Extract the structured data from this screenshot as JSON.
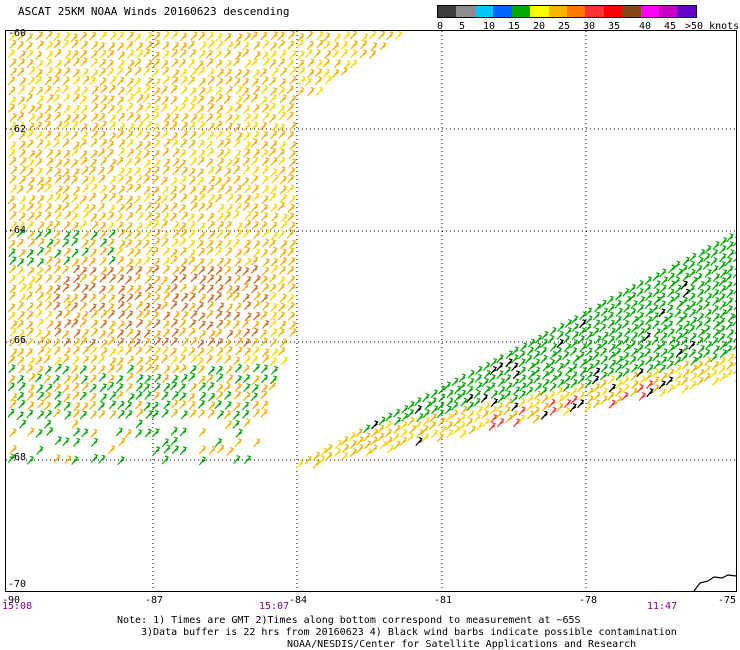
{
  "title": "ASCAT 25KM NOAA Winds 20160623 descending",
  "colorbar": {
    "colors": [
      "#3c3c3c",
      "#8c8c8c",
      "#00c8ff",
      "#0064ff",
      "#00aa00",
      "#ffff00",
      "#ffb400",
      "#ff7800",
      "#ff3232",
      "#ff0000",
      "#8b4513",
      "#ff00ff",
      "#c800c8",
      "#6400c8"
    ],
    "labels": [
      "0",
      "5",
      "10",
      "15",
      "20",
      "25",
      "30",
      "35",
      "40",
      "45",
      ">50 knots"
    ]
  },
  "map": {
    "lat_labels": [
      "-60",
      "-62",
      "-64",
      "-66",
      "-68",
      "-70"
    ],
    "lon_labels": [
      "-90",
      "-87",
      "-84",
      "-81",
      "-78",
      "-75"
    ],
    "time_labels": [
      "15:08",
      "15:07",
      "11:47"
    ],
    "coast_color": "#000000"
  },
  "footer": {
    "line1": "Note: 1) Times are GMT 2)Times along bottom correspond to measurement at ~65S",
    "line2": "3)Data buffer is 22 hrs from 20160623 4) Black wind barbs indicate possible contamination",
    "line3": "NOAA/NESDIS/Center for Satellite Applications and Research"
  }
}
